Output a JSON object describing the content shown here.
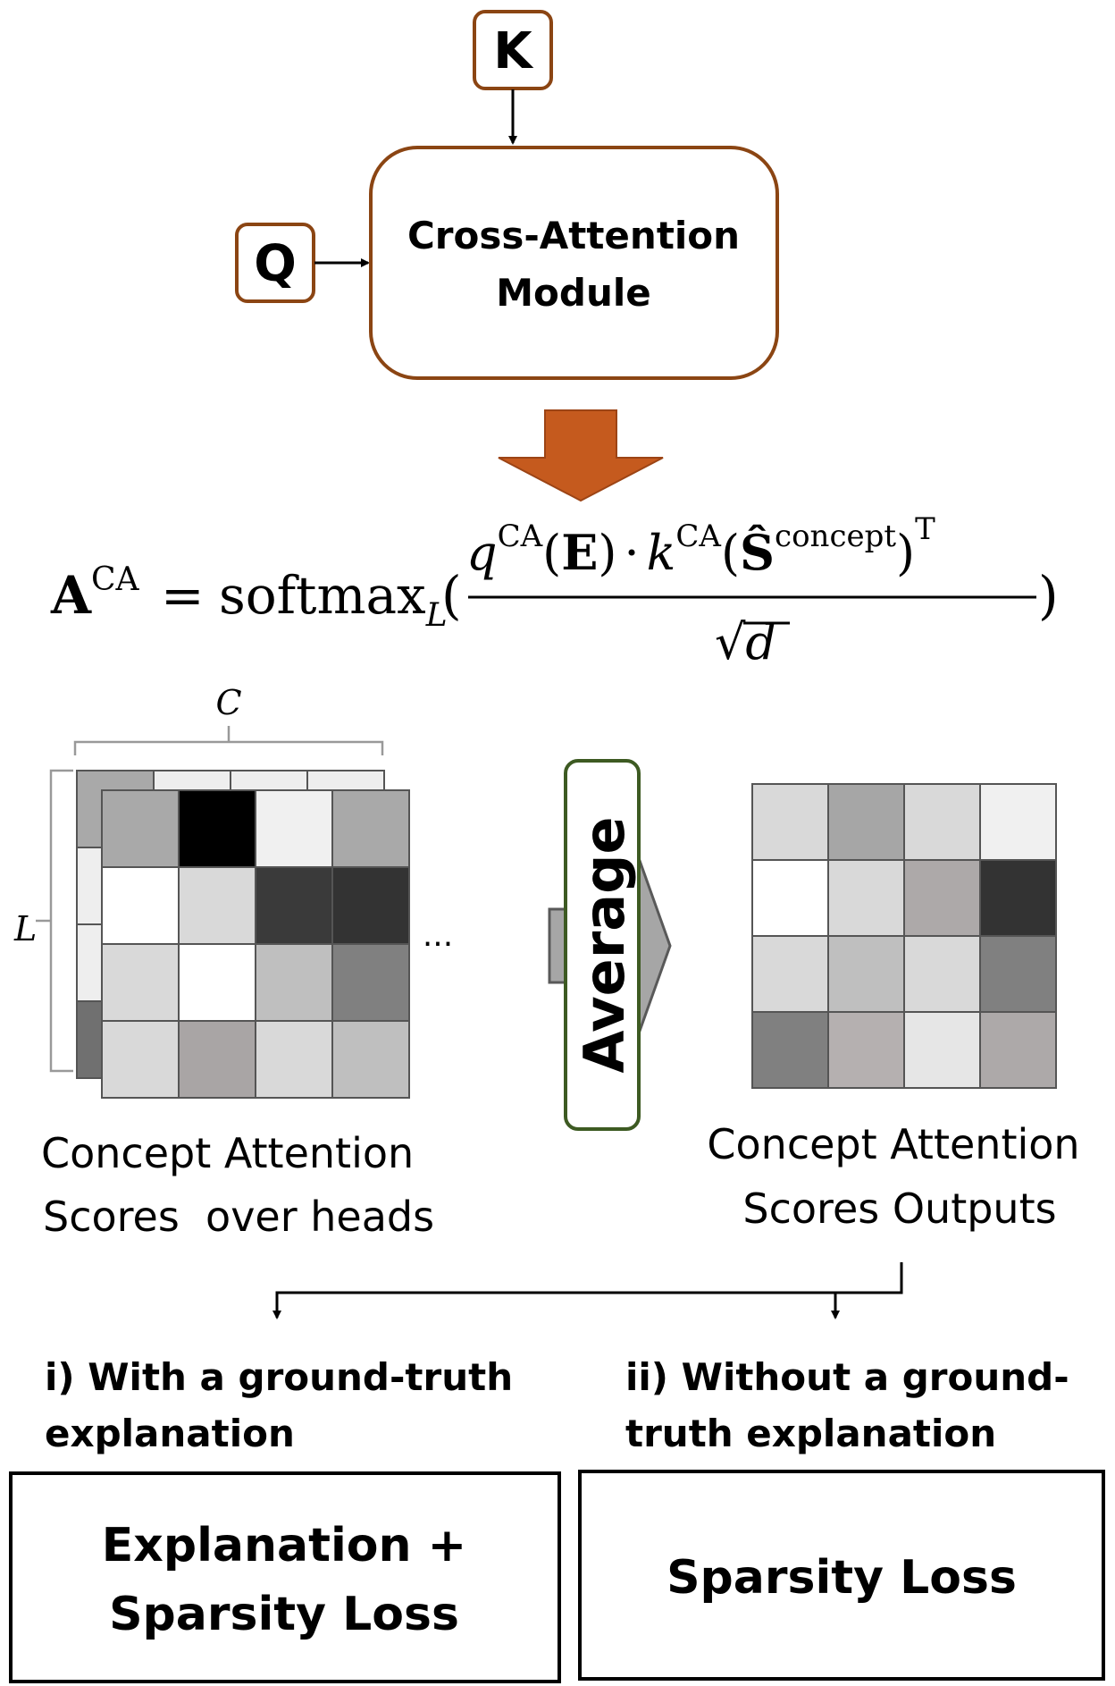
{
  "inputs": {
    "k_label": "K",
    "q_label": "Q"
  },
  "module": {
    "line1": "Cross-Attention",
    "line2": "Module"
  },
  "equation": {
    "lhs_base": "A",
    "lhs_sup": "CA",
    "equals": "=",
    "func": "softmax",
    "func_sub": "L",
    "open_paren": "(",
    "close_paren": ")",
    "numerator": {
      "q": "q",
      "q_sup": "CA",
      "e_open": "(",
      "e": "E",
      "e_close": ")",
      "dot": "·",
      "k": "k",
      "k_sup": "CA",
      "s_open": "(",
      "s": "Ŝ",
      "s_sup": "concept",
      "s_close": ")",
      "t_sup": "T"
    },
    "denominator": {
      "sqrt": "√",
      "d": "d"
    }
  },
  "grid_left": {
    "dim_top": "C",
    "dim_side": "L",
    "ellipsis": "...",
    "caption_line1": "Concept Attention",
    "caption_line2": "Scores  over heads",
    "front_cells": [
      [
        "#a9a9a9",
        "#000000",
        "#f0f0f0",
        "#a9a9a9"
      ],
      [
        "#ffffff",
        "#d9d9d9",
        "#3a3a3a",
        "#333333"
      ],
      [
        "#d9d9d9",
        "#ffffff",
        "#bfbfbf",
        "#808080"
      ],
      [
        "#d9d9d9",
        "#a9a5a5",
        "#d9d9d9",
        "#bfbfbf"
      ]
    ],
    "back_row_cells": [
      "#a9a9a9",
      "#eeeeee",
      "#eeeeee",
      "#eeeeee"
    ],
    "back_col_cells": [
      "#a9a9a9",
      "#eeeeee",
      "#eeeeee",
      "#707070"
    ]
  },
  "average": {
    "label": "Average"
  },
  "grid_right": {
    "caption_line1": "Concept Attention",
    "caption_line2": "Scores Outputs",
    "cells": [
      [
        "#d9d9d9",
        "#a6a6a6",
        "#d9d9d9",
        "#f0f0f0"
      ],
      [
        "#ffffff",
        "#d9d9d9",
        "#ada9a9",
        "#333333"
      ],
      [
        "#d9d9d9",
        "#bfbfbf",
        "#d9d9d9",
        "#808080"
      ],
      [
        "#808080",
        "#b5b0b0",
        "#e6e6e6",
        "#ada9a9"
      ]
    ]
  },
  "branches": {
    "left_line1": "i) With a ground-truth",
    "left_line2": "explanation",
    "right_line1": "ii) Without a ground-",
    "right_line2": "truth explanation"
  },
  "losses": {
    "left_line1": "Explanation +",
    "left_line2": "Sparsity Loss",
    "right_label": "Sparsity Loss"
  },
  "colors": {
    "input_border": "#8B4513",
    "module_border": "#8B4513",
    "orange_arrow": "#C55A1E",
    "average_border": "#3D5A22",
    "average_arrow": "#A6A6A6",
    "grid_stroke": "#555555",
    "text": "#000000"
  }
}
